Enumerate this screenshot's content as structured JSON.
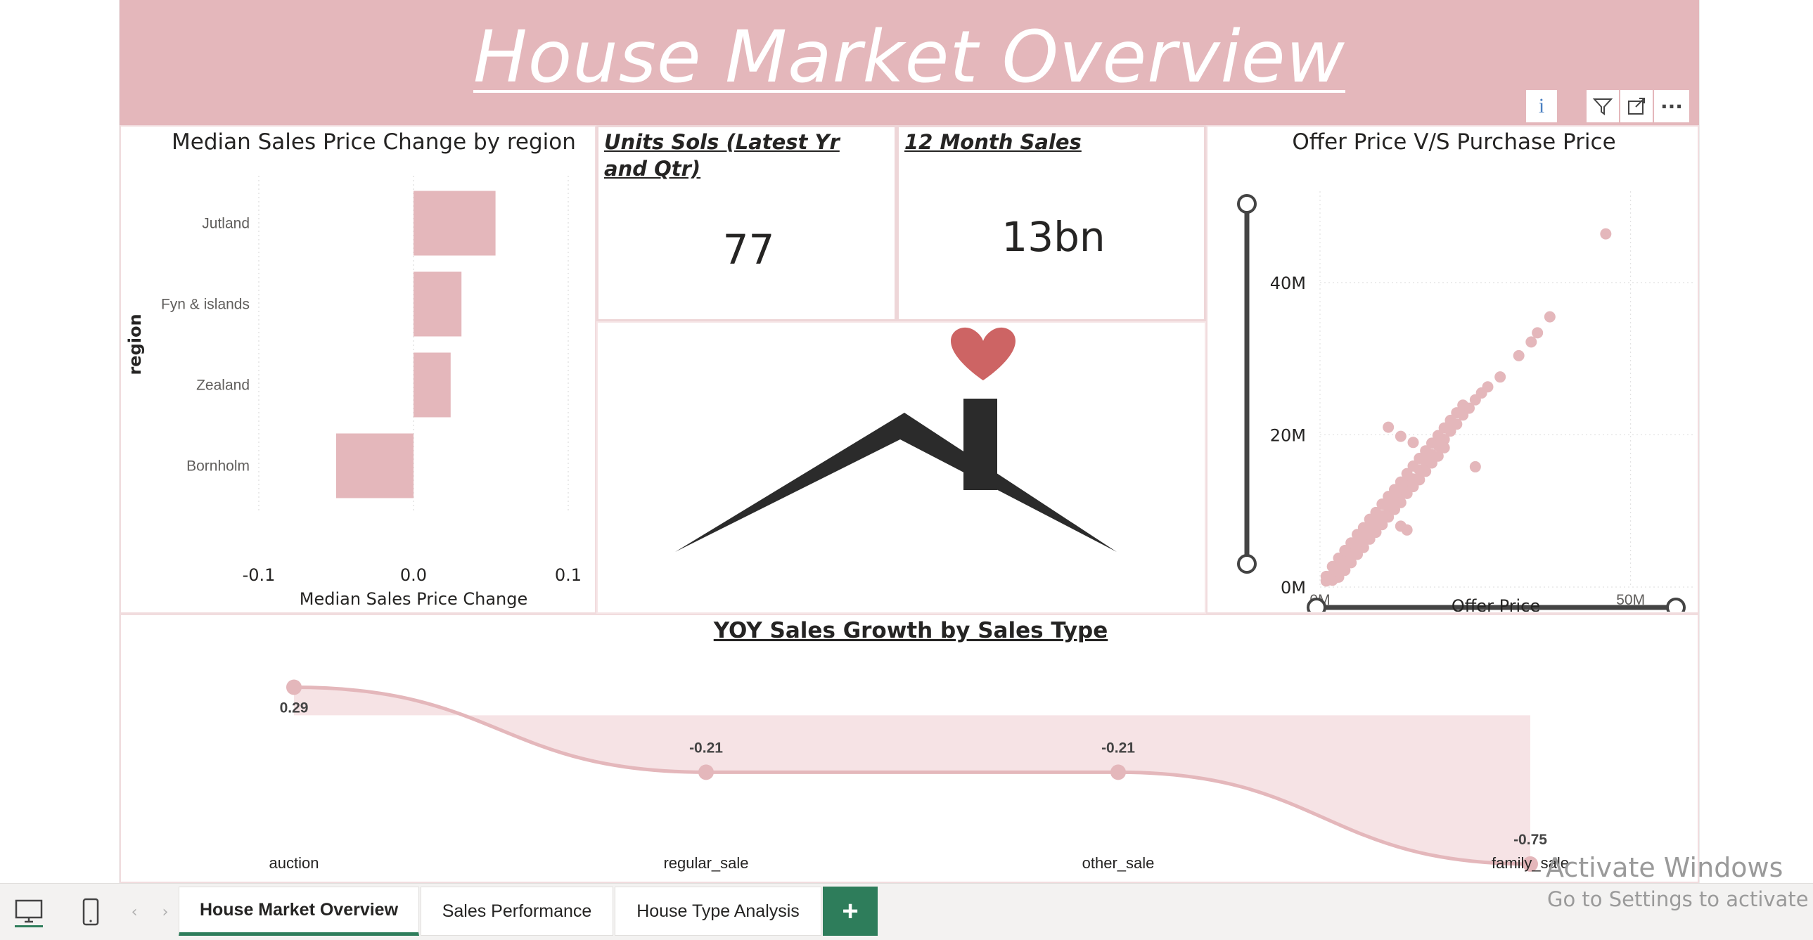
{
  "report": {
    "title": "House Market Overview",
    "visual_menu": {
      "info": "i",
      "more": "···"
    }
  },
  "median_chart": {
    "title": "Median Sales Price Change by region",
    "chart_data": {
      "type": "bar",
      "orientation": "horizontal",
      "title": "Median Sales Price Change by region",
      "categories": [
        "Jutland",
        "Fyn & islands",
        "Zealand",
        "Bornholm"
      ],
      "values": [
        0.053,
        0.031,
        0.024,
        -0.05
      ],
      "xlabel": "Median Sales Price Change",
      "ylabel": "region",
      "xlim": [
        -0.1,
        0.1
      ],
      "xticks": [
        "-0.1",
        "0.0",
        "0.1"
      ],
      "color": "#e4b7bb"
    }
  },
  "card_units": {
    "title": "Units Sols (Latest Yr and Qtr)",
    "value": "77"
  },
  "card_sales": {
    "title": "12 Month Sales",
    "value": "13bn"
  },
  "house_image": {
    "heart_color": "#cd6464",
    "roof_color": "#2b2b2b"
  },
  "scatter_chart": {
    "title": "Offer Price V/S Purchase Price",
    "chart_data": {
      "type": "scatter",
      "title": "Offer Price V/S Purchase Price",
      "xlabel": "Offer Price",
      "ylabel": "",
      "xticks": [
        "0M",
        "50M"
      ],
      "yticks": [
        "0M",
        "20M",
        "40M"
      ],
      "xlim": [
        0,
        60
      ],
      "ylim": [
        0,
        52
      ],
      "units": "M",
      "color": "#e4b7bb",
      "points": [
        [
          1,
          0.8
        ],
        [
          2,
          1.6
        ],
        [
          3,
          2.6
        ],
        [
          4,
          3.5
        ],
        [
          5,
          4.4
        ],
        [
          6,
          5.6
        ],
        [
          7,
          6.5
        ],
        [
          8,
          7.5
        ],
        [
          9,
          8.4
        ],
        [
          10,
          9.4
        ],
        [
          11,
          10.5
        ],
        [
          12,
          11.4
        ],
        [
          13,
          12.4
        ],
        [
          14,
          13.5
        ],
        [
          15,
          14.2
        ],
        [
          16,
          15.4
        ],
        [
          17,
          16.5
        ],
        [
          18,
          17.4
        ],
        [
          19,
          18.6
        ],
        [
          20,
          19.4
        ],
        [
          21,
          20.5
        ],
        [
          22,
          21.4
        ],
        [
          23,
          22.6
        ],
        [
          24,
          23.5
        ],
        [
          25,
          24.6
        ],
        [
          26,
          25.5
        ],
        [
          27,
          26.3
        ],
        [
          29,
          27.6
        ],
        [
          32,
          30.4
        ],
        [
          34,
          32.2
        ],
        [
          35,
          33.4
        ],
        [
          37,
          35.5
        ],
        [
          46,
          46.4
        ],
        [
          15,
          19
        ],
        [
          13,
          19.8
        ],
        [
          11,
          21
        ],
        [
          25,
          15.8
        ],
        [
          13,
          8
        ],
        [
          14,
          7.5
        ],
        [
          3,
          1.3
        ],
        [
          4,
          2.2
        ],
        [
          5,
          3.2
        ],
        [
          6,
          4.3
        ],
        [
          7,
          5.2
        ],
        [
          8,
          6.3
        ],
        [
          9,
          7.2
        ],
        [
          10,
          8.2
        ],
        [
          11,
          9.2
        ],
        [
          12,
          10.2
        ],
        [
          13,
          11.1
        ],
        [
          14,
          12.3
        ],
        [
          15,
          13.2
        ],
        [
          16,
          14.1
        ],
        [
          17,
          15.2
        ],
        [
          18,
          16.3
        ],
        [
          19,
          17.2
        ],
        [
          20,
          18.3
        ],
        [
          2,
          2.7
        ],
        [
          3,
          3.8
        ],
        [
          4,
          4.8
        ],
        [
          5,
          5.8
        ],
        [
          6,
          6.9
        ],
        [
          7,
          7.8
        ],
        [
          8,
          8.9
        ],
        [
          9,
          9.8
        ],
        [
          10,
          10.9
        ],
        [
          11,
          11.9
        ],
        [
          12,
          12.8
        ],
        [
          13,
          13.8
        ],
        [
          14,
          14.9
        ],
        [
          15,
          15.9
        ],
        [
          16,
          16.9
        ],
        [
          17,
          17.9
        ],
        [
          18,
          18.9
        ],
        [
          19,
          19.9
        ],
        [
          20,
          20.9
        ],
        [
          21,
          21.9
        ],
        [
          22,
          22.9
        ],
        [
          23,
          23.9
        ],
        [
          1,
          1.4
        ],
        [
          2,
          0.9
        ],
        [
          3,
          2
        ],
        [
          4,
          3
        ],
        [
          5,
          3.9
        ],
        [
          6,
          5
        ],
        [
          7,
          6
        ],
        [
          8,
          6.9
        ],
        [
          9,
          8
        ],
        [
          10,
          9
        ]
      ]
    }
  },
  "yoy_chart": {
    "title": "YOY Sales Growth by Sales Type",
    "chart_data": {
      "type": "area",
      "title": "YOY Sales Growth by Sales Type",
      "categories": [
        "auction",
        "regular_sale",
        "other_sale",
        "family_sale"
      ],
      "values": [
        0.29,
        -0.21,
        -0.21,
        -0.75
      ],
      "data_labels": [
        "0.29",
        "-0.21",
        "-0.21",
        "-0.75"
      ],
      "ylim": [
        -0.8,
        0.35
      ],
      "color": "#e4b7bb"
    }
  },
  "tabs": [
    {
      "label": "House Market Overview",
      "active": true
    },
    {
      "label": "Sales Performance",
      "active": false
    },
    {
      "label": "House Type Analysis",
      "active": false
    }
  ],
  "add_tab": {
    "label": "+"
  },
  "watermark": {
    "line1": "Activate Windows",
    "line2": "Go to Settings to activate Wi"
  }
}
